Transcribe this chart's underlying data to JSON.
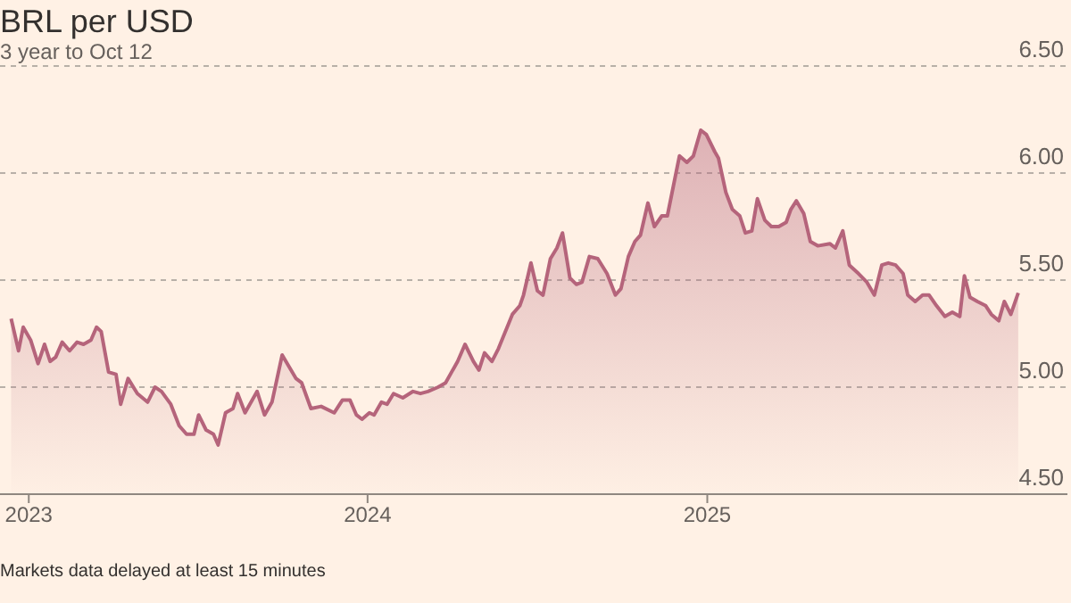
{
  "chart_data": {
    "type": "area",
    "title": "BRL per USD",
    "subtitle": "3 year to Oct 12",
    "annotations": [
      "Markets data delayed at least 15 minutes"
    ],
    "x": [
      "2022-12-13",
      "2022-12-21",
      "2022-12-26",
      "2023-01-03",
      "2023-01-11",
      "2023-01-18",
      "2023-01-24",
      "2023-01-30",
      "2023-02-06",
      "2023-02-14",
      "2023-02-22",
      "2023-03-01",
      "2023-03-09",
      "2023-03-15",
      "2023-03-20",
      "2023-03-28",
      "2023-04-05",
      "2023-04-10",
      "2023-04-18",
      "2023-04-28",
      "2023-05-09",
      "2023-05-17",
      "2023-05-24",
      "2023-06-03",
      "2023-06-12",
      "2023-06-20",
      "2023-06-28",
      "2023-07-03",
      "2023-07-11",
      "2023-07-19",
      "2023-07-24",
      "2023-08-01",
      "2023-08-09",
      "2023-08-14",
      "2023-08-22",
      "2023-09-04",
      "2023-09-12",
      "2023-09-20",
      "2023-10-01",
      "2023-10-16",
      "2023-10-22",
      "2023-11-01",
      "2023-11-12",
      "2023-11-26",
      "2023-12-05",
      "2023-12-13",
      "2023-12-20",
      "2023-12-26",
      "2024-01-03",
      "2024-01-08",
      "2024-01-16",
      "2024-01-22",
      "2024-01-29",
      "2024-02-08",
      "2024-02-19",
      "2024-02-27",
      "2024-03-06",
      "2024-03-17",
      "2024-03-25",
      "2024-04-07",
      "2024-04-15",
      "2024-04-24",
      "2024-04-30",
      "2024-05-06",
      "2024-05-14",
      "2024-05-21",
      "2024-06-05",
      "2024-06-13",
      "2024-06-17",
      "2024-06-25",
      "2024-07-02",
      "2024-07-08",
      "2024-07-16",
      "2024-07-23",
      "2024-07-29",
      "2024-08-06",
      "2024-08-13",
      "2024-08-19",
      "2024-08-27",
      "2024-09-05",
      "2024-09-15",
      "2024-09-24",
      "2024-09-30",
      "2024-10-08",
      "2024-10-15",
      "2024-10-21",
      "2024-10-29",
      "2024-11-05",
      "2024-11-13",
      "2024-11-19",
      "2024-12-02",
      "2024-12-10",
      "2024-12-17",
      "2024-12-25",
      "2024-12-31",
      "2025-01-09",
      "2025-01-13",
      "2025-01-21",
      "2025-01-28",
      "2025-02-05",
      "2025-02-11",
      "2025-02-18",
      "2025-02-24",
      "2025-03-04",
      "2025-03-11",
      "2025-03-19",
      "2025-03-27",
      "2025-04-01",
      "2025-04-07",
      "2025-04-15",
      "2025-04-22",
      "2025-04-30",
      "2025-05-13",
      "2025-05-19",
      "2025-05-27",
      "2025-06-03",
      "2025-06-13",
      "2025-06-22",
      "2025-06-30",
      "2025-07-08",
      "2025-07-15",
      "2025-07-23",
      "2025-07-31",
      "2025-08-05",
      "2025-08-13",
      "2025-08-21",
      "2025-08-28",
      "2025-09-05",
      "2025-09-14",
      "2025-09-22",
      "2025-09-30",
      "2025-10-05",
      "2025-10-11",
      "2025-10-19",
      "2025-10-28",
      "2025-11-03",
      "2025-11-11",
      "2025-11-17",
      "2025-11-24",
      "2025-12-02"
    ],
    "series": [
      {
        "color": "#b5647b",
        "values": [
          5.32,
          5.17,
          5.28,
          5.22,
          5.11,
          5.2,
          5.12,
          5.14,
          5.21,
          5.17,
          5.21,
          5.2,
          5.22,
          5.28,
          5.26,
          5.07,
          5.06,
          4.92,
          5.04,
          4.97,
          4.93,
          5.0,
          4.98,
          4.92,
          4.82,
          4.78,
          4.78,
          4.87,
          4.8,
          4.78,
          4.73,
          4.88,
          4.9,
          4.97,
          4.88,
          4.98,
          4.87,
          4.93,
          5.15,
          5.04,
          5.02,
          4.9,
          4.91,
          4.88,
          4.94,
          4.94,
          4.87,
          4.85,
          4.88,
          4.87,
          4.93,
          4.92,
          4.97,
          4.95,
          4.98,
          4.97,
          4.98,
          5.0,
          5.02,
          5.12,
          5.2,
          5.12,
          5.08,
          5.16,
          5.12,
          5.18,
          5.34,
          5.38,
          5.43,
          5.58,
          5.45,
          5.43,
          5.6,
          5.65,
          5.72,
          5.51,
          5.48,
          5.49,
          5.61,
          5.6,
          5.53,
          5.43,
          5.46,
          5.61,
          5.68,
          5.71,
          5.86,
          5.75,
          5.8,
          5.8,
          6.08,
          6.05,
          6.08,
          6.2,
          6.18,
          6.1,
          6.07,
          5.91,
          5.83,
          5.8,
          5.72,
          5.73,
          5.88,
          5.78,
          5.75,
          5.75,
          5.77,
          5.83,
          5.87,
          5.81,
          5.68,
          5.66,
          5.67,
          5.65,
          5.73,
          5.57,
          5.53,
          5.49,
          5.43,
          5.57,
          5.58,
          5.57,
          5.53,
          5.43,
          5.4,
          5.43,
          5.43,
          5.38,
          5.33,
          5.35,
          5.33,
          5.52,
          5.42,
          5.4,
          5.38,
          5.34,
          5.31,
          5.4,
          5.34,
          5.44
        ]
      }
    ],
    "xlim": [
      "2022-12-01",
      "2026-01-24"
    ],
    "xticks": [
      {
        "value": "2023-01-01",
        "label": "2023"
      },
      {
        "value": "2024-01-01",
        "label": "2024"
      },
      {
        "value": "2025-01-01",
        "label": "2025"
      }
    ],
    "ylim": [
      4.5,
      6.5
    ],
    "yticks": [
      {
        "value": 4.5,
        "label": "4.50"
      },
      {
        "value": 5,
        "label": "5.00"
      },
      {
        "value": 5.5,
        "label": "5.50"
      },
      {
        "value": 6,
        "label": "6.00"
      },
      {
        "value": 6.5,
        "label": "6.50"
      }
    ],
    "grid": "y",
    "legend": false
  }
}
